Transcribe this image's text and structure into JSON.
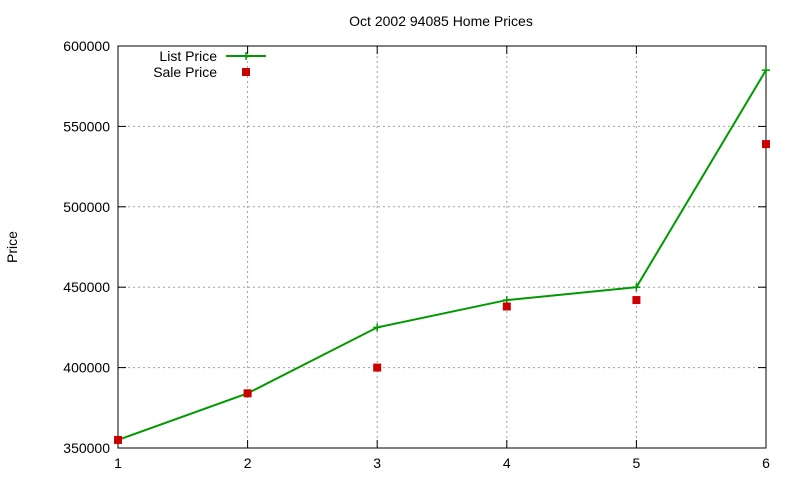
{
  "chart_data": {
    "type": "line",
    "title": "Oct 2002 94085 Home Prices",
    "xlabel": "",
    "ylabel": "Price",
    "x": [
      1,
      2,
      3,
      4,
      5,
      6
    ],
    "xlim": [
      1,
      6
    ],
    "ylim": [
      350000,
      600000
    ],
    "xticks": [
      "1",
      "2",
      "3",
      "4",
      "5",
      "6"
    ],
    "yticks": [
      "350000",
      "400000",
      "450000",
      "500000",
      "550000",
      "600000"
    ],
    "grid": true,
    "legend_position": "top-left",
    "series": [
      {
        "name": "List Price",
        "style": "line-with-plus-markers",
        "color": "#009900",
        "values": [
          355000,
          384000,
          425000,
          442000,
          450000,
          585000
        ]
      },
      {
        "name": "Sale Price",
        "style": "square-points",
        "color": "#cc0000",
        "values": [
          355000,
          384000,
          400000,
          438000,
          442000,
          539000
        ]
      }
    ]
  }
}
